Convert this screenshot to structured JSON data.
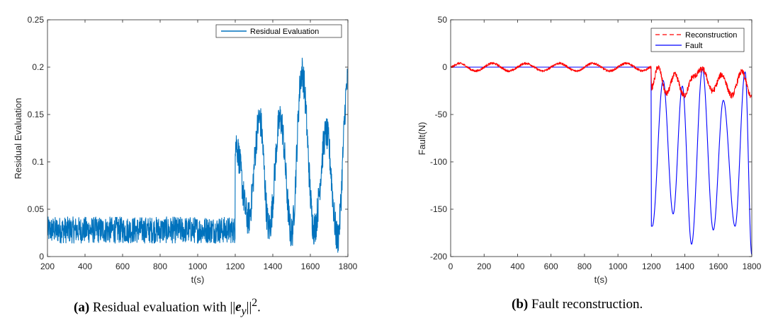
{
  "chart_data": [
    {
      "type": "line",
      "id": "a",
      "xlabel": "t(s)",
      "ylabel": "Residual Evaluation",
      "xlim": [
        200,
        1800
      ],
      "ylim": [
        0,
        0.25
      ],
      "xticks": [
        200,
        400,
        600,
        800,
        1000,
        1200,
        1400,
        1600,
        1800
      ],
      "yticks": [
        0,
        0.05,
        0.1,
        0.15,
        0.2,
        0.25
      ],
      "ytick_labels": [
        "0",
        "0.05",
        "0.1",
        "0.15",
        "0.2",
        "0.25"
      ],
      "legend": [
        "Residual Evaluation"
      ],
      "legend_position": "top-right",
      "series": [
        {
          "name": "Residual Evaluation",
          "color": "#0072BD",
          "style": "solid",
          "x": [
            200,
            1199,
            1200,
            1270,
            1330,
            1380,
            1440,
            1500,
            1555,
            1620,
            1685,
            1745,
            1800
          ],
          "y": [
            0.028,
            0.028,
            0.12,
            0.04,
            0.145,
            0.03,
            0.145,
            0.025,
            0.195,
            0.03,
            0.13,
            0.02,
            0.185
          ],
          "noise": [
            0.014,
            0.014,
            0.018,
            0.018,
            0.018,
            0.018,
            0.018,
            0.018,
            0.018,
            0.018,
            0.018,
            0.018,
            0.018
          ]
        }
      ]
    },
    {
      "type": "line",
      "id": "b",
      "xlabel": "t(s)",
      "ylabel": "Fault(N)",
      "xlim": [
        0,
        1800
      ],
      "ylim": [
        -200,
        50
      ],
      "xticks": [
        0,
        200,
        400,
        600,
        800,
        1000,
        1200,
        1400,
        1600,
        1800
      ],
      "yticks": [
        -200,
        -150,
        -100,
        -50,
        0,
        50
      ],
      "ytick_labels": [
        "-200",
        "-150",
        "-100",
        "-50",
        "0",
        "50"
      ],
      "legend": [
        "Reconstruction",
        "Fault"
      ],
      "legend_position": "top-right",
      "series": [
        {
          "name": "Fault",
          "color": "#0000FF",
          "style": "solid",
          "x": [
            0,
            1199,
            1200,
            1205,
            1270,
            1330,
            1385,
            1440,
            1505,
            1570,
            1630,
            1700,
            1760,
            1800
          ],
          "y": [
            0,
            0,
            -168,
            -168,
            -14,
            -155,
            -20,
            -187,
            -2,
            -172,
            -35,
            -168,
            -5,
            -198
          ]
        },
        {
          "name": "Reconstruction",
          "color": "#FF0000",
          "style": "dashed",
          "x": [
            0,
            50,
            150,
            250,
            350,
            450,
            550,
            650,
            750,
            850,
            950,
            1050,
            1150,
            1199,
            1200,
            1240,
            1290,
            1340,
            1395,
            1450,
            1505,
            1565,
            1620,
            1680,
            1740,
            1800
          ],
          "y": [
            0,
            4,
            -4,
            4,
            -4,
            4,
            -4,
            4,
            -4,
            4,
            -4,
            4,
            -4,
            0,
            -22,
            0,
            -28,
            -8,
            -30,
            -10,
            -2,
            -25,
            -8,
            -30,
            -5,
            -32
          ],
          "noise": [
            1.2,
            1.2,
            1.2,
            1.2,
            1.2,
            1.2,
            1.2,
            1.2,
            1.2,
            1.2,
            1.2,
            1.2,
            1.2,
            1.2,
            3,
            3,
            3,
            3,
            3,
            3,
            3,
            3,
            3,
            3,
            3,
            3
          ]
        }
      ]
    }
  ],
  "captions": [
    {
      "label": "(a)",
      "text_before": "Residual evaluation with ||",
      "symbol": "e",
      "subscript": "y",
      "text_after": "||",
      "superscript": "2",
      "end": "."
    },
    {
      "label": "(b)",
      "text": "Fault reconstruction."
    }
  ]
}
